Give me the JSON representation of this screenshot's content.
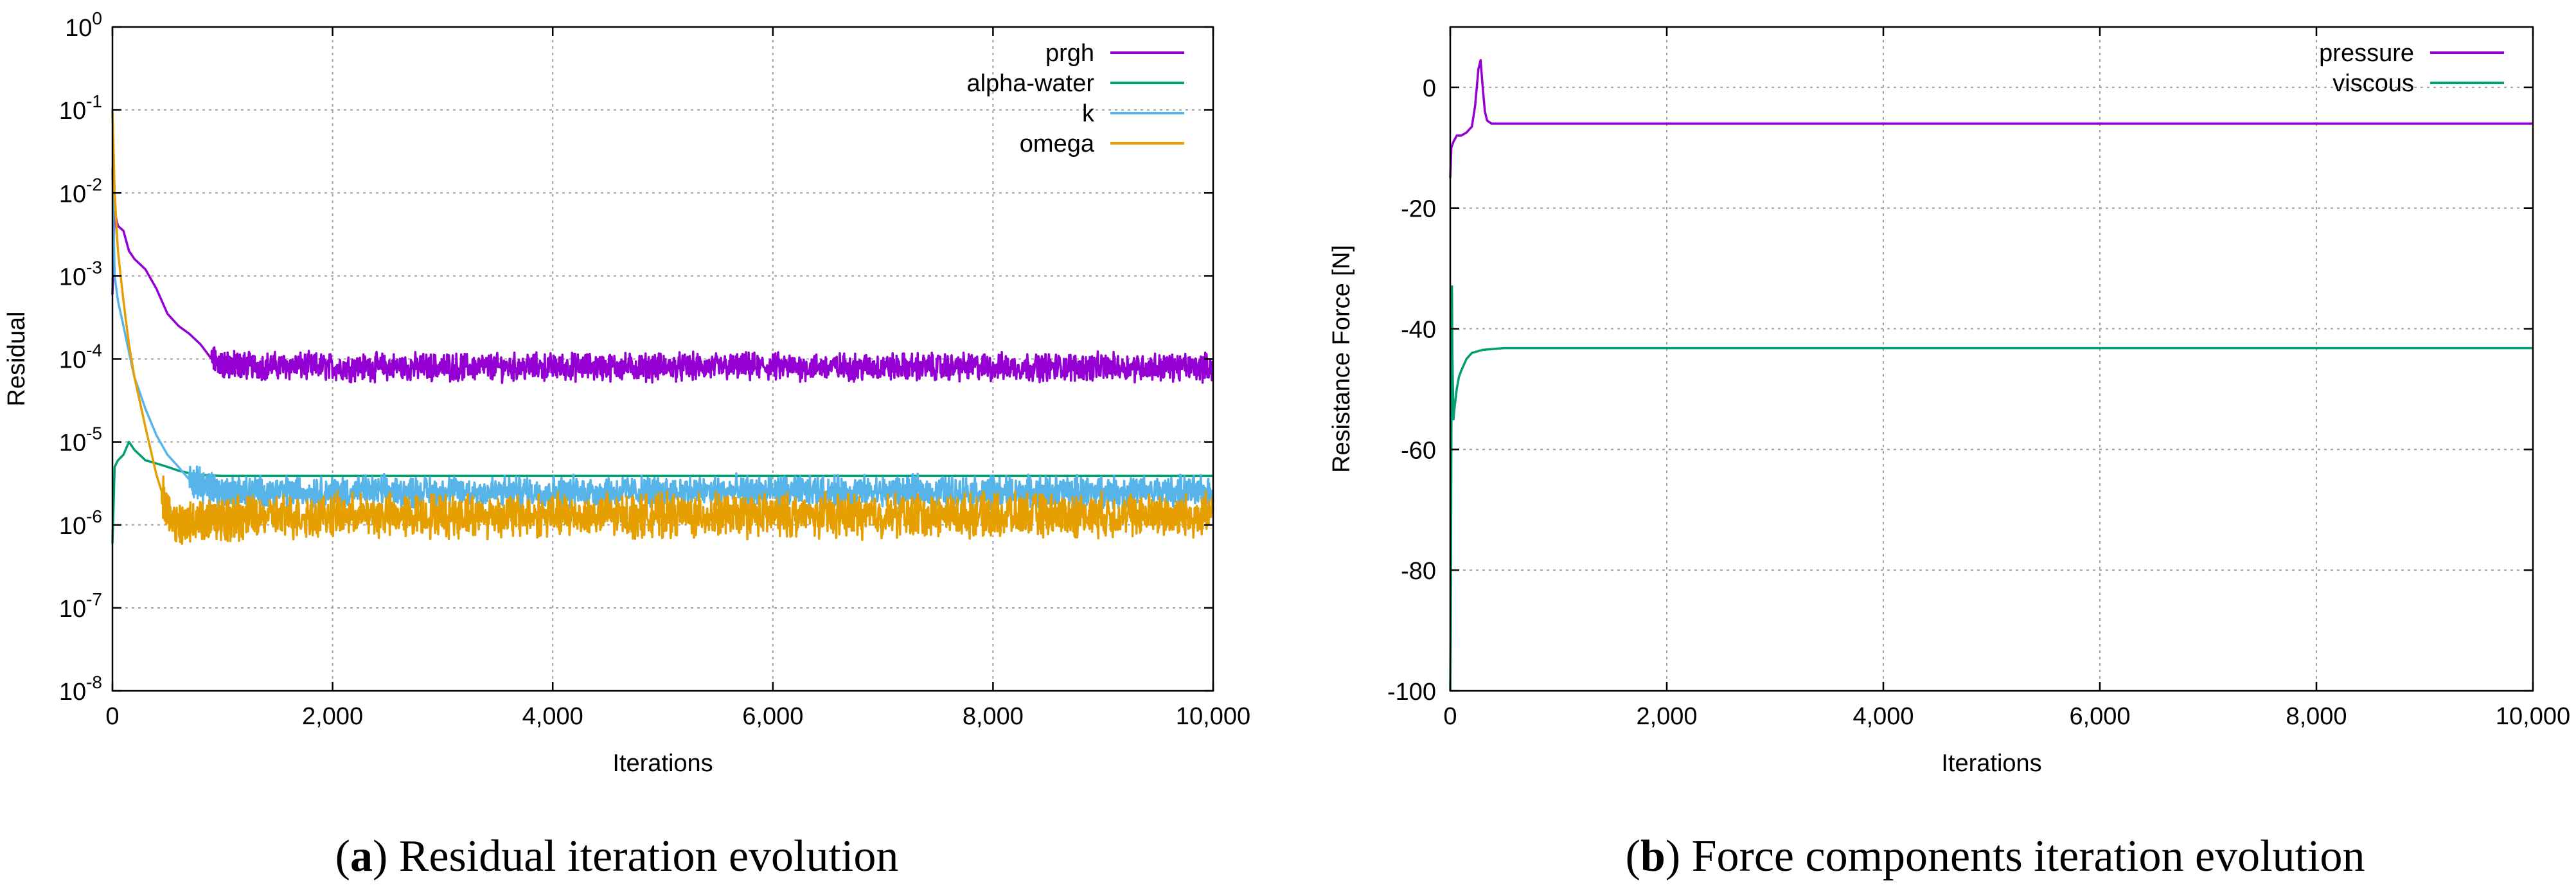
{
  "chart_data": [
    {
      "type": "line",
      "title": "",
      "caption_label": "a",
      "caption_text": "Residual iteration evolution",
      "xlabel": "Iterations",
      "ylabel": "Residual",
      "y_scale": "log",
      "xlim": [
        0,
        10000
      ],
      "ylim": [
        1e-08,
        1
      ],
      "grid": true,
      "legend_position": "top-right",
      "x_ticks": [
        {
          "value": 0,
          "label": "0"
        },
        {
          "value": 2000,
          "label": "2,000"
        },
        {
          "value": 4000,
          "label": "4,000"
        },
        {
          "value": 6000,
          "label": "6,000"
        },
        {
          "value": 8000,
          "label": "8,000"
        },
        {
          "value": 10000,
          "label": "10,000"
        }
      ],
      "y_ticks": [
        {
          "exp": 0,
          "base": "10",
          "sup": "0"
        },
        {
          "exp": -1,
          "base": "10",
          "sup": "-1"
        },
        {
          "exp": -2,
          "base": "10",
          "sup": "-2"
        },
        {
          "exp": -3,
          "base": "10",
          "sup": "-3"
        },
        {
          "exp": -4,
          "base": "10",
          "sup": "-4"
        },
        {
          "exp": -5,
          "base": "10",
          "sup": "-5"
        },
        {
          "exp": -6,
          "base": "10",
          "sup": "-6"
        },
        {
          "exp": -7,
          "base": "10",
          "sup": "-7"
        },
        {
          "exp": -8,
          "base": "10",
          "sup": "-8"
        }
      ],
      "series": [
        {
          "name": "prgh",
          "color": "#9400d3",
          "x": [
            0,
            20,
            50,
            100,
            150,
            200,
            300,
            400,
            500,
            600,
            700,
            800,
            900,
            1000,
            2000,
            4000,
            6000,
            8000,
            10000
          ],
          "y": [
            0.0006,
            0.006,
            0.004,
            0.0035,
            0.002,
            0.0016,
            0.0012,
            0.0007,
            0.00035,
            0.00025,
            0.0002,
            0.00015,
            0.0001,
            8.5e-05,
            8e-05,
            8e-05,
            8e-05,
            8e-05,
            8e-05
          ],
          "noise_from": 900,
          "noise_decades": 0.13
        },
        {
          "name": "alpha-water",
          "color": "#009e73",
          "x": [
            0,
            20,
            50,
            100,
            150,
            200,
            300,
            400,
            500,
            600,
            700,
            800,
            1000,
            2000,
            4000,
            6000,
            8000,
            10000
          ],
          "y": [
            6e-07,
            5e-06,
            6e-06,
            7e-06,
            1e-05,
            8e-06,
            6e-06,
            5.5e-06,
            5e-06,
            4.5e-06,
            4.2e-06,
            4e-06,
            3.9e-06,
            3.9e-06,
            3.9e-06,
            3.9e-06,
            3.9e-06,
            3.9e-06
          ],
          "noise_from": null,
          "noise_decades": 0
        },
        {
          "name": "k",
          "color": "#56b4e9",
          "x": [
            0,
            20,
            50,
            100,
            150,
            200,
            300,
            400,
            500,
            600,
            700,
            800,
            1000,
            2000,
            4000,
            6000,
            8000,
            10000
          ],
          "y": [
            0.02,
            0.001,
            0.0005,
            0.00025,
            0.00012,
            6e-05,
            2.5e-05,
            1.2e-05,
            7e-06,
            5e-06,
            3.5e-06,
            3e-06,
            2.5e-06,
            2.5e-06,
            2.5e-06,
            2.5e-06,
            2.5e-06,
            2.5e-06
          ],
          "noise_from": 700,
          "noise_decades": 0.15
        },
        {
          "name": "omega",
          "color": "#e69f00",
          "x": [
            0,
            20,
            50,
            100,
            150,
            200,
            300,
            400,
            500,
            600,
            800,
            1000,
            2000,
            4000,
            6000,
            8000,
            10000
          ],
          "y": [
            0.1,
            0.01,
            0.002,
            0.0005,
            0.00015,
            6e-05,
            1.5e-05,
            4e-06,
            1.5e-06,
            9e-07,
            1.2e-06,
            1.2e-06,
            1.3e-06,
            1.3e-06,
            1.3e-06,
            1.3e-06,
            1.3e-06
          ],
          "noise_from": 450,
          "noise_decades": 0.2
        }
      ]
    },
    {
      "type": "line",
      "title": "",
      "caption_label": "b",
      "caption_text": "Force components iteration evolution",
      "xlabel": "Iterations",
      "ylabel": "Resistance Force [N]",
      "y_scale": "linear",
      "xlim": [
        0,
        10000
      ],
      "ylim": [
        -100,
        10
      ],
      "grid": true,
      "legend_position": "top-right",
      "x_ticks": [
        {
          "value": 0,
          "label": "0"
        },
        {
          "value": 2000,
          "label": "2,000"
        },
        {
          "value": 4000,
          "label": "4,000"
        },
        {
          "value": 6000,
          "label": "6,000"
        },
        {
          "value": 8000,
          "label": "8,000"
        },
        {
          "value": 10000,
          "label": "10,000"
        }
      ],
      "y_ticks": [
        {
          "value": 0,
          "label": "0"
        },
        {
          "value": -20,
          "label": "-20"
        },
        {
          "value": -40,
          "label": "-40"
        },
        {
          "value": -60,
          "label": "-60"
        },
        {
          "value": -80,
          "label": "-80"
        },
        {
          "value": -100,
          "label": "-100"
        }
      ],
      "series": [
        {
          "name": "pressure",
          "color": "#9400d3",
          "x": [
            0,
            10,
            30,
            60,
            100,
            150,
            200,
            230,
            260,
            280,
            300,
            320,
            340,
            380,
            450,
            600,
            1000,
            2000,
            4000,
            6000,
            8000,
            10000
          ],
          "y": [
            -15,
            -10,
            -9,
            -8,
            -8,
            -7.5,
            -6.5,
            -3,
            3,
            4.5,
            0,
            -4,
            -5.5,
            -6,
            -6,
            -6,
            -6,
            -6,
            -6,
            -6,
            -6,
            -6
          ],
          "noise_from": null,
          "noise_decades": 0
        },
        {
          "name": "viscous",
          "color": "#009e73",
          "x": [
            0,
            5,
            10,
            15,
            20,
            30,
            40,
            60,
            80,
            100,
            150,
            200,
            300,
            500,
            1000,
            2000,
            4000,
            6000,
            8000,
            10000
          ],
          "y": [
            -100,
            -90,
            -60,
            -30,
            -45,
            -55,
            -53,
            -50,
            -48,
            -47,
            -45,
            -44,
            -43.5,
            -43.2,
            -43.2,
            -43.2,
            -43.2,
            -43.2,
            -43.2,
            -43.2
          ],
          "noise_from": null,
          "noise_decades": 0
        }
      ]
    }
  ]
}
